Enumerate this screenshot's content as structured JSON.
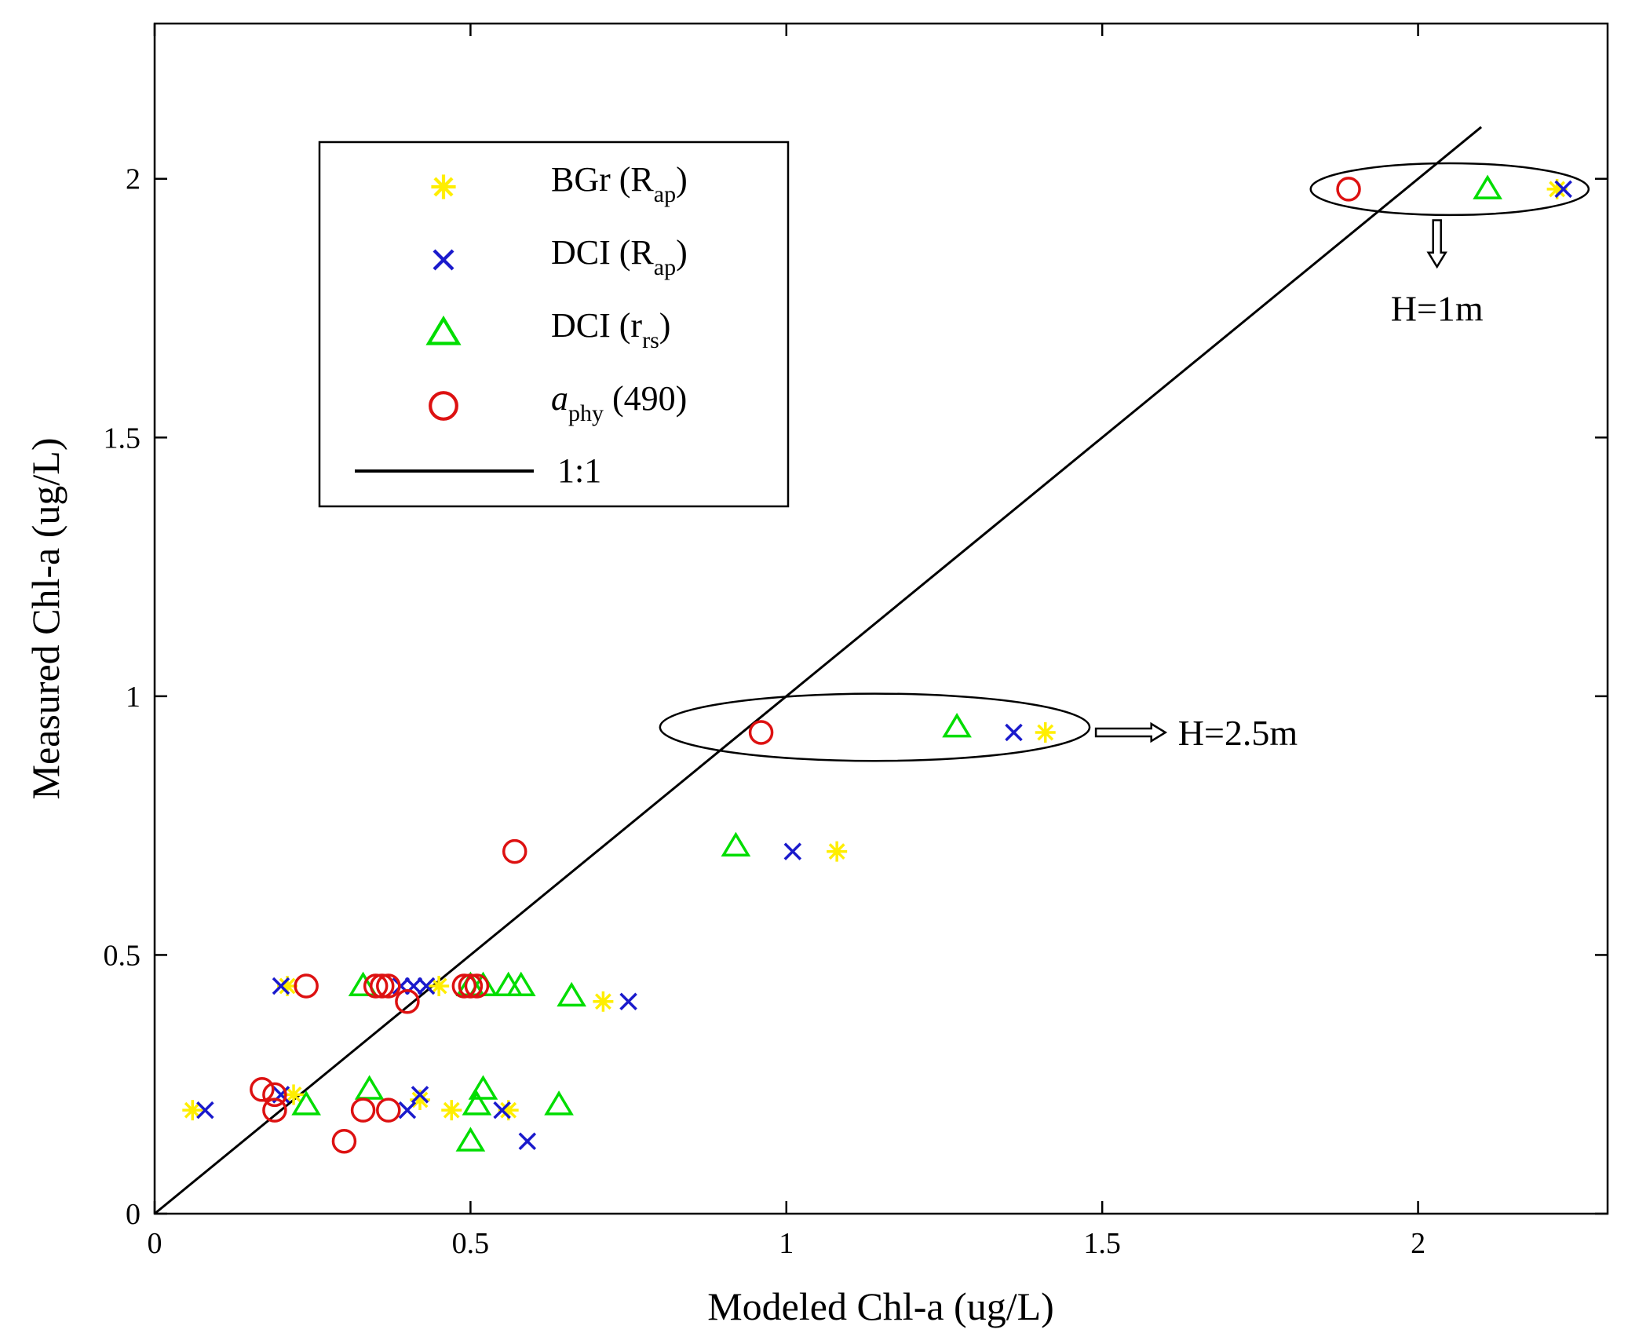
{
  "chart_data": {
    "type": "scatter",
    "title": "",
    "xlabel": "Modeled Chl-a (ug/L)",
    "ylabel": "Measured Chl-a (ug/L)",
    "xlim": [
      0,
      2.3
    ],
    "ylim": [
      0,
      2.3
    ],
    "xticks": [
      0,
      0.5,
      1,
      1.5,
      2
    ],
    "yticks": [
      0,
      0.5,
      1,
      1.5,
      2
    ],
    "xtick_labels": [
      "0",
      "0.5",
      "1",
      "1.5",
      "2"
    ],
    "ytick_labels": [
      "0",
      "0.5",
      "1",
      "1.5",
      "2"
    ],
    "grid": false,
    "legend_position": "top-left",
    "colors": {
      "bgr": "#ffee00",
      "dci_rap": "#1a1acc",
      "dci_rrs": "#00dd00",
      "aphy": "#dd1111",
      "line": "#000000"
    },
    "series": [
      {
        "id": "bgr",
        "marker": "asterisk",
        "label": {
          "main": "BGr (R",
          "sub": "ap",
          "tail": ")"
        },
        "points": [
          [
            0.06,
            0.2
          ],
          [
            0.21,
            0.44
          ],
          [
            0.22,
            0.23
          ],
          [
            0.42,
            0.22
          ],
          [
            0.45,
            0.44
          ],
          [
            0.47,
            0.2
          ],
          [
            0.56,
            0.2
          ],
          [
            0.71,
            0.41
          ],
          [
            1.08,
            0.7
          ],
          [
            1.41,
            0.93
          ],
          [
            2.22,
            1.98
          ]
        ]
      },
      {
        "id": "dci_rap",
        "marker": "x",
        "label": {
          "main": "DCI (R",
          "sub": "ap",
          "tail": ")"
        },
        "points": [
          [
            0.08,
            0.2
          ],
          [
            0.2,
            0.23
          ],
          [
            0.2,
            0.44
          ],
          [
            0.4,
            0.2
          ],
          [
            0.42,
            0.23
          ],
          [
            0.39,
            0.44
          ],
          [
            0.41,
            0.44
          ],
          [
            0.43,
            0.44
          ],
          [
            0.55,
            0.2
          ],
          [
            0.59,
            0.14
          ],
          [
            0.75,
            0.41
          ],
          [
            1.01,
            0.7
          ],
          [
            1.36,
            0.93
          ],
          [
            2.23,
            1.98
          ]
        ]
      },
      {
        "id": "dci_rrs",
        "marker": "triangle",
        "label": {
          "main": "DCI (r",
          "sub": "rs",
          "tail": ")"
        },
        "points": [
          [
            0.24,
            0.21
          ],
          [
            0.33,
            0.44
          ],
          [
            0.34,
            0.24
          ],
          [
            0.5,
            0.14
          ],
          [
            0.5,
            0.44
          ],
          [
            0.51,
            0.21
          ],
          [
            0.52,
            0.44
          ],
          [
            0.52,
            0.24
          ],
          [
            0.56,
            0.44
          ],
          [
            0.58,
            0.44
          ],
          [
            0.64,
            0.21
          ],
          [
            0.66,
            0.42
          ],
          [
            0.92,
            0.71
          ],
          [
            1.27,
            0.94
          ],
          [
            2.11,
            1.98
          ]
        ]
      },
      {
        "id": "aphy",
        "marker": "circle",
        "label": {
          "main": "a",
          "sub": "phy",
          "tail": " (490)"
        },
        "points": [
          [
            0.17,
            0.24
          ],
          [
            0.19,
            0.23
          ],
          [
            0.19,
            0.2
          ],
          [
            0.24,
            0.44
          ],
          [
            0.3,
            0.14
          ],
          [
            0.33,
            0.2
          ],
          [
            0.35,
            0.44
          ],
          [
            0.36,
            0.44
          ],
          [
            0.37,
            0.44
          ],
          [
            0.37,
            0.2
          ],
          [
            0.4,
            0.41
          ],
          [
            0.49,
            0.44
          ],
          [
            0.5,
            0.44
          ],
          [
            0.51,
            0.44
          ],
          [
            0.57,
            0.7
          ],
          [
            0.96,
            0.93
          ],
          [
            1.89,
            1.98
          ]
        ]
      }
    ],
    "reference_line": {
      "label": "1:1",
      "from": [
        0,
        0
      ],
      "to": [
        2.1,
        2.1
      ]
    },
    "annotations": [
      {
        "text": "H=1m",
        "ellipse_center": [
          2.05,
          1.98
        ],
        "ellipse_radii": [
          0.22,
          0.05
        ],
        "arrow": "down",
        "arrow_from": [
          2.03,
          1.92
        ],
        "arrow_to": [
          2.03,
          1.83
        ],
        "text_at": [
          2.03,
          1.75
        ]
      },
      {
        "text": "H=2.5m",
        "ellipse_center": [
          1.14,
          0.94
        ],
        "ellipse_radii": [
          0.34,
          0.065
        ],
        "arrow": "right",
        "arrow_from": [
          1.49,
          0.93
        ],
        "arrow_to": [
          1.6,
          0.93
        ],
        "text_at": [
          1.62,
          0.93
        ]
      }
    ]
  }
}
